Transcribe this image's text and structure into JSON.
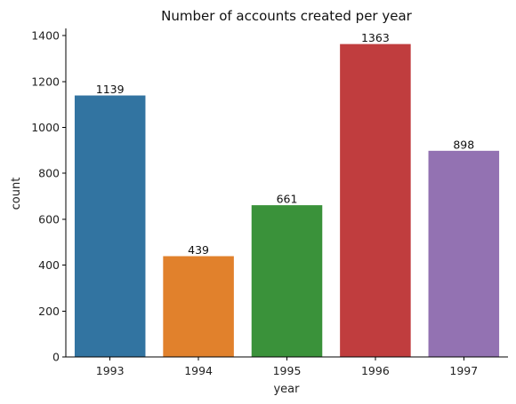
{
  "chart_data": {
    "type": "bar",
    "title": "Number of accounts created per year",
    "xlabel": "year",
    "ylabel": "count",
    "categories": [
      "1993",
      "1994",
      "1995",
      "1996",
      "1997"
    ],
    "values": [
      1139,
      439,
      661,
      1363,
      898
    ],
    "data_labels": [
      "1139",
      "439",
      "661",
      "1363",
      "898"
    ],
    "colors": [
      "#3274a1",
      "#e1812c",
      "#3a923a",
      "#c03d3e",
      "#9372b2"
    ],
    "ylim": [
      0,
      1431.15
    ],
    "yticks": [
      0,
      200,
      400,
      600,
      800,
      1000,
      1200,
      1400
    ],
    "ytick_labels": [
      "0",
      "200",
      "400",
      "600",
      "800",
      "1000",
      "1200",
      "1400"
    ],
    "grid": false,
    "legend": "none"
  }
}
